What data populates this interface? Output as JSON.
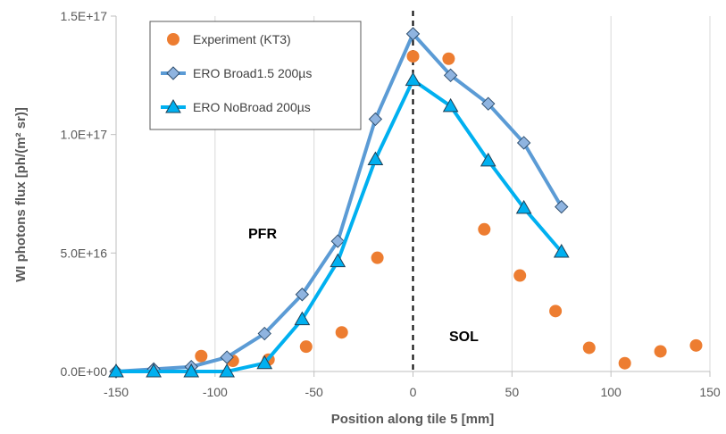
{
  "chart_data": {
    "type": "line",
    "title": "",
    "xlabel": "Position along tile 5 [mm]",
    "ylabel": "WI photons flux [ph/(m² sr)]",
    "xlim": [
      -150,
      150
    ],
    "ylim": [
      0,
      1.5e+17
    ],
    "x_ticks": [
      -150,
      -100,
      -50,
      0,
      50,
      100,
      150
    ],
    "x_tick_labels": [
      "-150",
      "-100",
      "-50",
      "0",
      "50",
      "100",
      "150"
    ],
    "y_ticks": [
      0,
      5e+16,
      1e+17,
      1.5e+17
    ],
    "y_tick_labels": [
      "0.0E+00",
      "5.0E+16",
      "1.0E+17",
      "1.5E+17"
    ],
    "grid": "vertical",
    "legend_position": "top-left",
    "annotations": [
      "PFR",
      "SOL"
    ],
    "vertical_line": {
      "x": 0,
      "style": "dashed"
    },
    "series": [
      {
        "name": "Experiment (KT3)",
        "kind": "scatter",
        "marker": "circle",
        "color": "#ED7D31",
        "x": [
          -107,
          -91,
          -73,
          -54,
          -36,
          -18,
          0,
          18,
          36,
          54,
          72,
          89,
          107,
          125,
          143
        ],
        "y": [
          6500000000000000.0,
          4500000000000000.0,
          5000000000000000.0,
          1.05e+16,
          1.65e+16,
          4.8e+16,
          1.33e+17,
          1.32e+17,
          6e+16,
          4.05e+16,
          2.55e+16,
          1e+16,
          3500000000000000.0,
          8500000000000000.0,
          1.1e+16
        ]
      },
      {
        "name": "ERO  Broad1.5 200µs",
        "kind": "line",
        "marker": "diamond",
        "color": "#5B9BD5",
        "x": [
          -150,
          -131,
          -112,
          -94,
          -75,
          -56,
          -38,
          -19,
          0,
          19,
          38,
          56,
          75
        ],
        "y": [
          0,
          1000000000000000.0,
          2000000000000000.0,
          6000000000000000.0,
          1.6e+16,
          3.25e+16,
          5.5e+16,
          1.065e+17,
          1.425e+17,
          1.25e+17,
          1.13e+17,
          9.65e+16,
          6.95e+16
        ]
      },
      {
        "name": "ERO  NoBroad 200µs",
        "kind": "line",
        "marker": "triangle",
        "color": "#00B0F0",
        "x": [
          -150,
          -131,
          -112,
          -94,
          -75,
          -56,
          -38,
          -19,
          0,
          19,
          38,
          56,
          75
        ],
        "y": [
          0,
          0,
          0,
          0,
          3500000000000000.0,
          2.2e+16,
          4.65e+16,
          8.95e+16,
          1.23e+17,
          1.12e+17,
          8.9e+16,
          6.9e+16,
          5.05e+16
        ]
      }
    ]
  }
}
